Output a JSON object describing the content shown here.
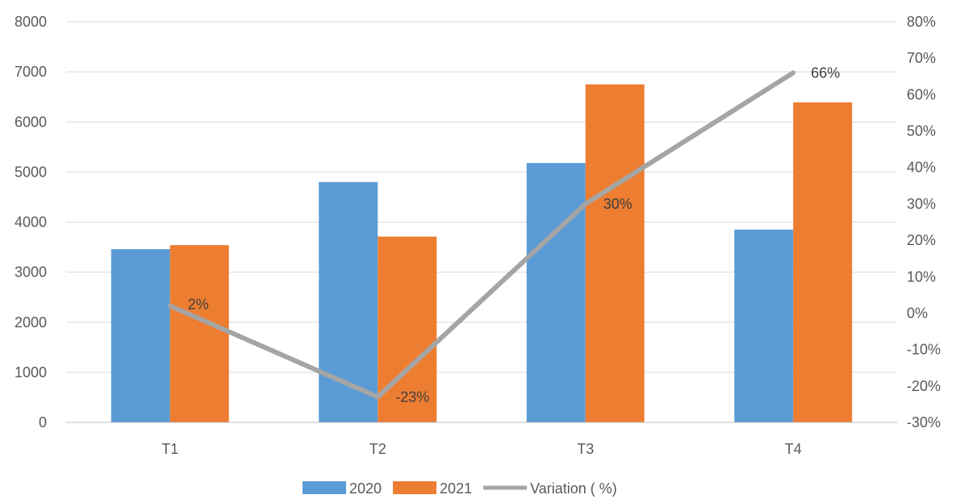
{
  "chart_data": {
    "type": "bar",
    "categories": [
      "T1",
      "T2",
      "T3",
      "T4"
    ],
    "series": [
      {
        "name": "2020",
        "type": "bar",
        "axis": "left",
        "color": "#5B9BD5",
        "values": [
          3460,
          4800,
          5180,
          3850
        ]
      },
      {
        "name": "2021",
        "type": "bar",
        "axis": "left",
        "color": "#ED7D31",
        "values": [
          3540,
          3710,
          6750,
          6390
        ]
      },
      {
        "name": "Variation ( %)",
        "type": "line",
        "axis": "right",
        "color": "#A5A5A5",
        "values": [
          2,
          -23,
          30,
          66
        ],
        "labels": [
          "2%",
          "-23%",
          "30%",
          "66%"
        ]
      }
    ],
    "y_left": {
      "min": 0,
      "max": 8000,
      "step": 1000,
      "ticks": [
        "0",
        "1000",
        "2000",
        "3000",
        "4000",
        "5000",
        "6000",
        "7000",
        "8000"
      ]
    },
    "y_right": {
      "min": -30,
      "max": 80,
      "step": 10,
      "ticks": [
        "-30%",
        "-20%",
        "-10%",
        "0%",
        "10%",
        "20%",
        "30%",
        "40%",
        "50%",
        "60%",
        "70%",
        "80%"
      ]
    },
    "grid": true,
    "legend_position": "bottom",
    "gridline_color": "#D9D9D9",
    "axis_color": "#BFBFBF"
  }
}
